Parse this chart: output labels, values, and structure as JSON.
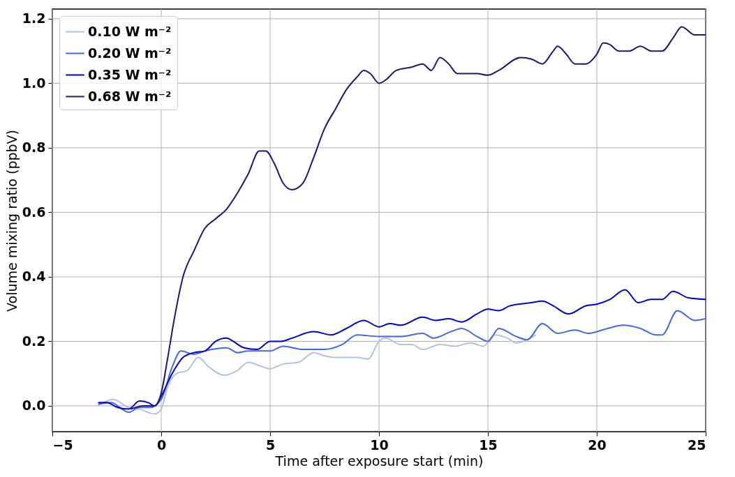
{
  "chart_data": {
    "type": "line",
    "xlabel": "Time after exposure start (min)",
    "ylabel": "Volume mixing ratio (ppbV)",
    "xlim": [
      -5,
      25
    ],
    "xticks": [
      {
        "value": -5,
        "label": "−5"
      },
      0,
      5,
      10,
      15,
      20,
      25
    ],
    "ylim": [
      -0.08,
      1.23
    ],
    "yticks": [
      {
        "value": 0,
        "label": "0.0"
      },
      {
        "value": 0.2,
        "label": "0.2"
      },
      {
        "value": 0.4,
        "label": "0.4"
      },
      {
        "value": 0.6,
        "label": "0.6"
      },
      {
        "value": 0.8,
        "label": "0.8"
      },
      {
        "value": 1,
        "label": "1.0"
      },
      {
        "value": 1.2,
        "label": "1.2"
      }
    ],
    "grid": true,
    "legend": "top left",
    "series": [
      {
        "name": "0.10 W m⁻²",
        "color": "#b0c4de",
        "x": [
          -2.9,
          -2.2,
          -1.5,
          -1,
          -0.3,
          0,
          0.3,
          0.7,
          1.2,
          1.7,
          2.2,
          2.9,
          3.5,
          4,
          4.5,
          5,
          5.6,
          6.3,
          7,
          7.5,
          8,
          9,
          9.5,
          10,
          10.3,
          11,
          11.5,
          12,
          12.8,
          13.5,
          14.2,
          14.8,
          15.3,
          15.9,
          16.3,
          16.8,
          17.2
        ],
        "values": [
          0,
          0.02,
          -0.005,
          -0.01,
          -0.025,
          -0.01,
          0.06,
          0.1,
          0.11,
          0.15,
          0.12,
          0.095,
          0.11,
          0.135,
          0.125,
          0.115,
          0.13,
          0.135,
          0.165,
          0.155,
          0.15,
          0.15,
          0.145,
          0.2,
          0.21,
          0.19,
          0.19,
          0.175,
          0.19,
          0.185,
          0.195,
          0.185,
          0.22,
          0.21,
          0.195,
          0.205,
          0.22
        ]
      },
      {
        "name": "0.20 W m⁻²",
        "color": "#4169e1",
        "x": [
          -2.9,
          -2.3,
          -1.8,
          -1.5,
          -1,
          -0.5,
          0,
          0.5,
          0.9,
          1.5,
          2,
          3,
          3.5,
          4,
          5,
          5.6,
          6.5,
          7.5,
          8.3,
          9,
          10,
          11,
          12,
          12.5,
          13.3,
          13.8,
          14.5,
          15,
          15.5,
          16.3,
          16.8,
          17.5,
          18.2,
          19,
          19.6,
          20.5,
          21.2,
          22,
          22.7,
          23,
          23.7,
          24.5,
          25
        ],
        "values": [
          0.005,
          0.01,
          -0.01,
          -0.02,
          -0.005,
          -0.005,
          0.02,
          0.12,
          0.17,
          0.16,
          0.17,
          0.18,
          0.165,
          0.17,
          0.17,
          0.185,
          0.175,
          0.175,
          0.19,
          0.22,
          0.215,
          0.215,
          0.225,
          0.21,
          0.23,
          0.24,
          0.215,
          0.2,
          0.24,
          0.215,
          0.205,
          0.255,
          0.225,
          0.235,
          0.225,
          0.24,
          0.25,
          0.24,
          0.22,
          0.22,
          0.295,
          0.265,
          0.27
        ]
      },
      {
        "name": "0.35 W m⁻²",
        "color": "#0000cd",
        "x": [
          -2.9,
          -2.5,
          -2,
          -1.5,
          -1,
          -0.6,
          -0.3,
          0,
          0.5,
          1,
          1.5,
          2,
          2.5,
          3,
          3.3,
          3.8,
          4.4,
          5,
          5.5,
          6,
          7,
          7.8,
          8.5,
          9.3,
          10,
          10.5,
          11,
          12,
          12.6,
          13.2,
          13.8,
          14.5,
          15,
          15.5,
          16,
          17,
          17.5,
          18,
          18.7,
          19.5,
          20,
          20.6,
          21.3,
          21.9,
          22.5,
          23,
          23.5,
          24.2,
          25
        ],
        "values": [
          0.01,
          0.01,
          -0.005,
          -0.01,
          0.015,
          0.01,
          0,
          0.03,
          0.1,
          0.15,
          0.165,
          0.17,
          0.2,
          0.21,
          0.2,
          0.18,
          0.175,
          0.2,
          0.2,
          0.21,
          0.23,
          0.22,
          0.24,
          0.265,
          0.245,
          0.255,
          0.25,
          0.275,
          0.265,
          0.27,
          0.26,
          0.285,
          0.3,
          0.295,
          0.31,
          0.32,
          0.325,
          0.31,
          0.285,
          0.31,
          0.315,
          0.33,
          0.36,
          0.32,
          0.33,
          0.33,
          0.355,
          0.335,
          0.33
        ]
      },
      {
        "name": "0.68 W m⁻²",
        "color": "#191970",
        "x": [
          -1.4,
          -0.8,
          -0.3,
          0,
          0.3,
          0.6,
          1,
          1.5,
          2,
          2.5,
          3,
          3.5,
          4,
          4.5,
          4.8,
          5.2,
          5.6,
          6,
          6.5,
          7,
          7.5,
          8,
          8.5,
          9,
          9.3,
          9.6,
          10,
          10.3,
          10.8,
          11.5,
          12,
          12.4,
          12.8,
          13.2,
          13.6,
          14.5,
          15,
          15.5,
          16.5,
          17,
          17.5,
          18,
          18.2,
          18.6,
          19,
          19.5,
          20,
          20.3,
          20.6,
          21,
          21.5,
          22,
          22.5,
          23,
          23.5,
          23.9,
          24.5,
          25
        ],
        "values": [
          -0.01,
          0,
          0,
          0.04,
          0.15,
          0.27,
          0.4,
          0.48,
          0.55,
          0.58,
          0.61,
          0.66,
          0.72,
          0.79,
          0.79,
          0.75,
          0.69,
          0.67,
          0.69,
          0.77,
          0.86,
          0.92,
          0.98,
          1.02,
          1.04,
          1.03,
          1,
          1.01,
          1.04,
          1.05,
          1.06,
          1.04,
          1.08,
          1.06,
          1.03,
          1.03,
          1.025,
          1.04,
          1.08,
          1.075,
          1.06,
          1.1,
          1.115,
          1.09,
          1.06,
          1.06,
          1.09,
          1.125,
          1.12,
          1.1,
          1.1,
          1.115,
          1.1,
          1.1,
          1.14,
          1.175,
          1.15,
          1.15
        ]
      }
    ]
  }
}
